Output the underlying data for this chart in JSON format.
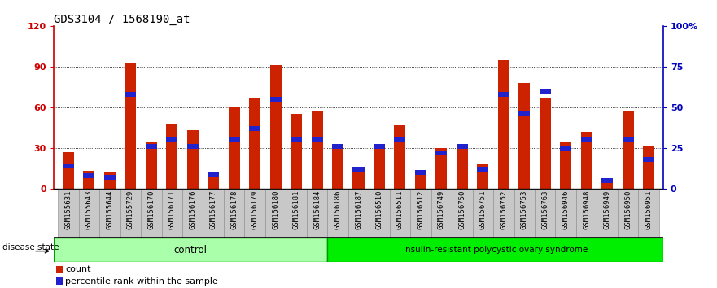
{
  "title": "GDS3104 / 1568190_at",
  "samples": [
    "GSM155631",
    "GSM155643",
    "GSM155644",
    "GSM155729",
    "GSM156170",
    "GSM156171",
    "GSM156176",
    "GSM156177",
    "GSM156178",
    "GSM156179",
    "GSM156180",
    "GSM156181",
    "GSM156184",
    "GSM156186",
    "GSM156187",
    "GSM156510",
    "GSM156511",
    "GSM156512",
    "GSM156749",
    "GSM156750",
    "GSM156751",
    "GSM156752",
    "GSM156753",
    "GSM156763",
    "GSM156946",
    "GSM156948",
    "GSM156949",
    "GSM156950",
    "GSM156951"
  ],
  "count_values": [
    27,
    13,
    12,
    93,
    35,
    48,
    43,
    12,
    60,
    67,
    91,
    55,
    57,
    30,
    15,
    30,
    47,
    13,
    30,
    33,
    18,
    95,
    78,
    67,
    35,
    42,
    8,
    57,
    32
  ],
  "percentile_values": [
    14,
    8,
    7,
    58,
    26,
    30,
    26,
    9,
    30,
    37,
    55,
    30,
    30,
    26,
    12,
    26,
    30,
    10,
    22,
    26,
    12,
    58,
    46,
    60,
    25,
    30,
    5,
    30,
    18
  ],
  "control_count": 13,
  "disease_count": 16,
  "group_labels": [
    "control",
    "insulin-resistant polycystic ovary syndrome"
  ],
  "ctrl_color": "#AAFFAA",
  "disease_color": "#00EE00",
  "group_border_color": "#009900",
  "bar_color_red": "#CC2200",
  "bar_color_blue": "#2222CC",
  "plot_bg": "#FFFFFF",
  "fig_bg": "#FFFFFF",
  "left_axis_color": "#CC0000",
  "right_axis_color": "#0000BB",
  "ylim_left": [
    0,
    120
  ],
  "ylim_right": [
    0,
    100
  ],
  "yticks_left": [
    0,
    30,
    60,
    90,
    120
  ],
  "ytick_labels_left": [
    "0",
    "30",
    "60",
    "90",
    "120"
  ],
  "yticks_right": [
    0,
    25,
    50,
    75,
    100
  ],
  "ytick_labels_right": [
    "0",
    "25",
    "50",
    "75",
    "100%"
  ],
  "disease_state_label": "disease state",
  "legend_count_label": "count",
  "legend_percentile_label": "percentile rank within the sample",
  "bar_width": 0.55,
  "title_fontsize": 10,
  "tick_fontsize": 6.5,
  "label_fontsize": 8,
  "xtick_bg_color": "#C8C8C8"
}
